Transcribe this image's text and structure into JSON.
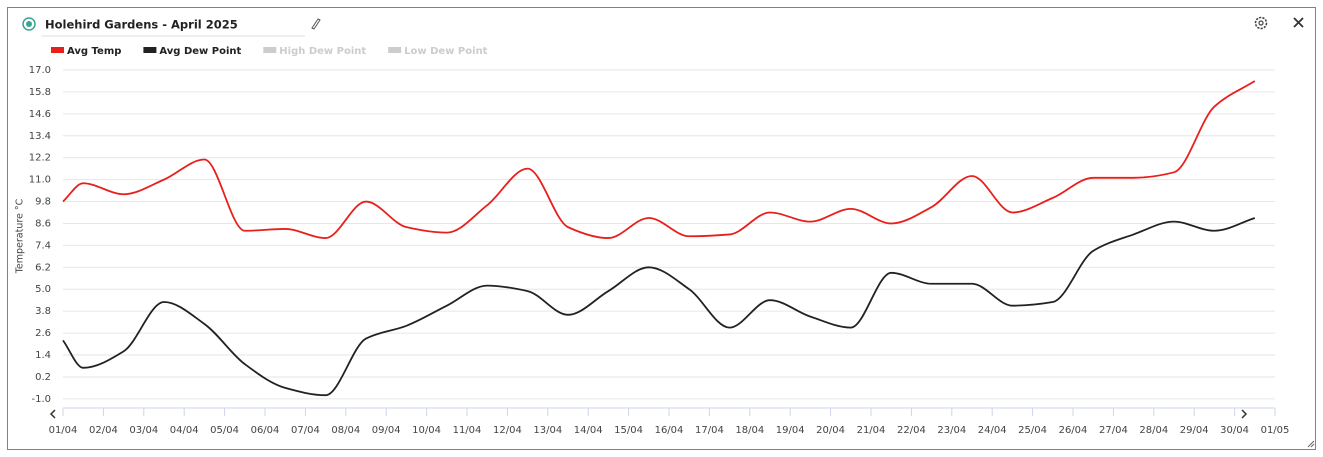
{
  "chart_data": {
    "type": "line",
    "title": "Holehird Gardens - April 2025",
    "ylabel": "Temperature °C",
    "categories": [
      "01/04",
      "02/04",
      "03/04",
      "04/04",
      "05/04",
      "06/04",
      "07/04",
      "08/04",
      "09/04",
      "10/04",
      "11/04",
      "12/04",
      "13/04",
      "14/04",
      "15/04",
      "16/04",
      "17/04",
      "18/04",
      "19/04",
      "20/04",
      "21/04",
      "22/04",
      "23/04",
      "24/04",
      "25/04",
      "26/04",
      "27/04",
      "28/04",
      "29/04",
      "30/04",
      "01/05"
    ],
    "series": [
      {
        "name": "Avg Temp",
        "color": "#e8201b",
        "values": [
          9.8,
          10.8,
          10.2,
          11.0,
          12.1,
          8.2,
          8.3,
          7.8,
          9.8,
          8.4,
          8.1,
          9.6,
          11.6,
          8.4,
          7.8,
          8.9,
          7.9,
          8.0,
          9.2,
          8.7,
          9.4,
          8.6,
          9.5,
          11.2,
          9.2,
          10.0,
          11.1,
          11.1,
          11.4,
          15.0,
          16.4
        ]
      },
      {
        "name": "Avg Dew Point",
        "color": "#222222",
        "values": [
          2.2,
          0.7,
          1.6,
          4.3,
          3.1,
          0.9,
          -0.4,
          -0.8,
          2.3,
          3.0,
          4.1,
          5.2,
          4.9,
          3.6,
          4.9,
          6.2,
          5.0,
          2.9,
          4.4,
          3.5,
          2.9,
          5.9,
          5.3,
          5.3,
          4.1,
          4.3,
          7.1,
          8.0,
          8.7,
          8.2,
          8.9
        ]
      },
      {
        "name": "High Dew Point",
        "color": "#cccccc",
        "visible": false
      },
      {
        "name": "Low Dew Point",
        "color": "#cccccc",
        "visible": false
      }
    ],
    "ylim": [
      -1.5,
      17.0
    ],
    "yticks": [
      {
        "value": -1,
        "label": "-1.0"
      },
      0.2,
      1.4,
      2.6,
      3.8,
      {
        "value": 5,
        "label": "5.0"
      },
      6.2,
      7.4,
      8.6,
      9.8,
      {
        "value": 11,
        "label": "11.0"
      },
      12.2,
      13.4,
      14.6,
      15.8,
      {
        "value": 17,
        "label": "17.0"
      }
    ],
    "grid": true
  }
}
